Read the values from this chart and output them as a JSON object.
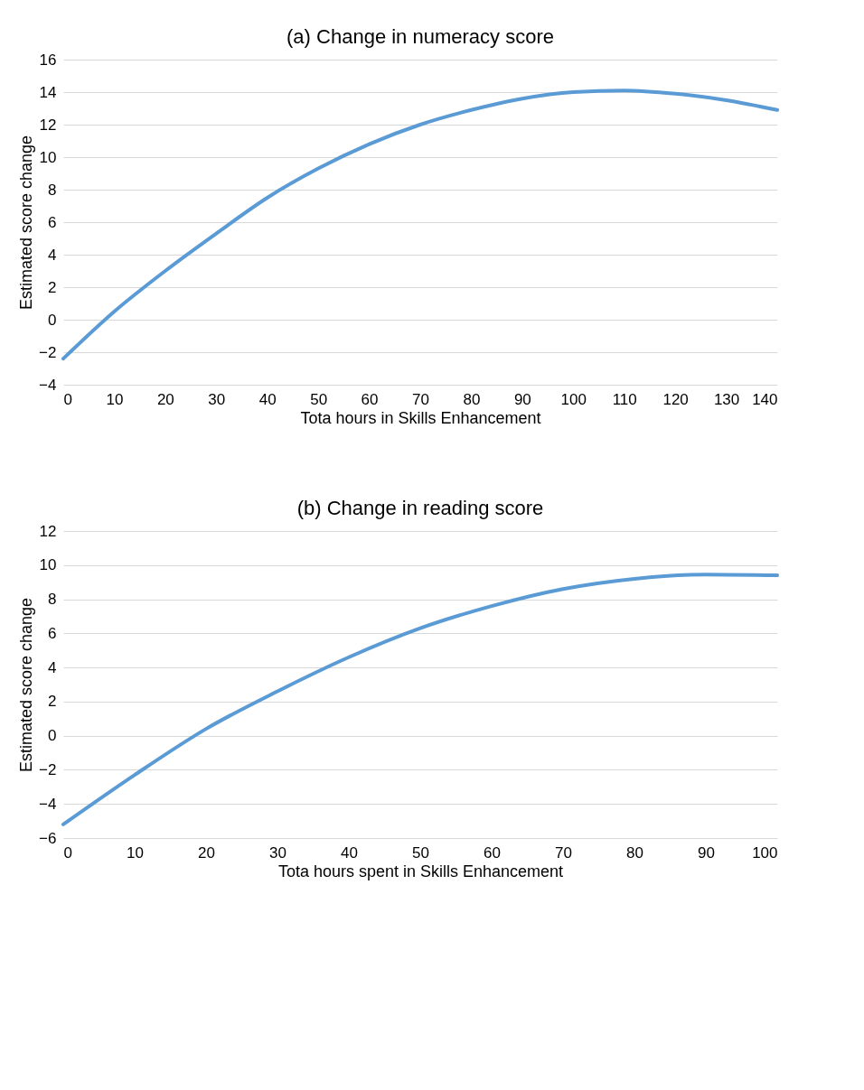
{
  "chart_data": [
    {
      "type": "line",
      "title": "(a) Change in numeracy score",
      "xlabel": "Tota hours in Skills Enhancement",
      "ylabel": "Estimated score change",
      "x": [
        0,
        10,
        20,
        30,
        40,
        50,
        60,
        70,
        80,
        90,
        100,
        110,
        120,
        130,
        140
      ],
      "series": [
        {
          "color": "#5b9bd5",
          "values": [
            -2.4,
            0.5,
            3.0,
            5.3,
            7.5,
            9.3,
            10.8,
            12.0,
            12.9,
            13.6,
            14.0,
            14.1,
            13.9,
            13.5,
            12.9
          ]
        }
      ],
      "xlim": [
        0,
        140
      ],
      "xticks": [
        0,
        10,
        20,
        30,
        40,
        50,
        60,
        70,
        80,
        90,
        100,
        110,
        120,
        130,
        140
      ],
      "ylim": [
        -4,
        16
      ],
      "yticks": [
        -4,
        -2,
        0,
        2,
        4,
        6,
        8,
        10,
        12,
        14,
        16
      ],
      "grid": "y",
      "legend": false
    },
    {
      "type": "line",
      "title": "(b) Change in reading score",
      "xlabel": "Tota hours spent in Skills Enhancement",
      "ylabel": "Estimated score change",
      "x": [
        0,
        10,
        20,
        30,
        40,
        50,
        60,
        70,
        80,
        90,
        100
      ],
      "series": [
        {
          "color": "#5b9bd5",
          "values": [
            -5.2,
            -2.3,
            0.4,
            2.6,
            4.6,
            6.3,
            7.6,
            8.6,
            9.2,
            9.45,
            9.4
          ]
        }
      ],
      "xlim": [
        0,
        100
      ],
      "xticks": [
        0,
        10,
        20,
        30,
        40,
        50,
        60,
        70,
        80,
        90,
        100
      ],
      "ylim": [
        -6,
        12
      ],
      "yticks": [
        -6,
        -4,
        -2,
        0,
        2,
        4,
        6,
        8,
        10,
        12
      ],
      "grid": "y",
      "legend": false
    }
  ]
}
